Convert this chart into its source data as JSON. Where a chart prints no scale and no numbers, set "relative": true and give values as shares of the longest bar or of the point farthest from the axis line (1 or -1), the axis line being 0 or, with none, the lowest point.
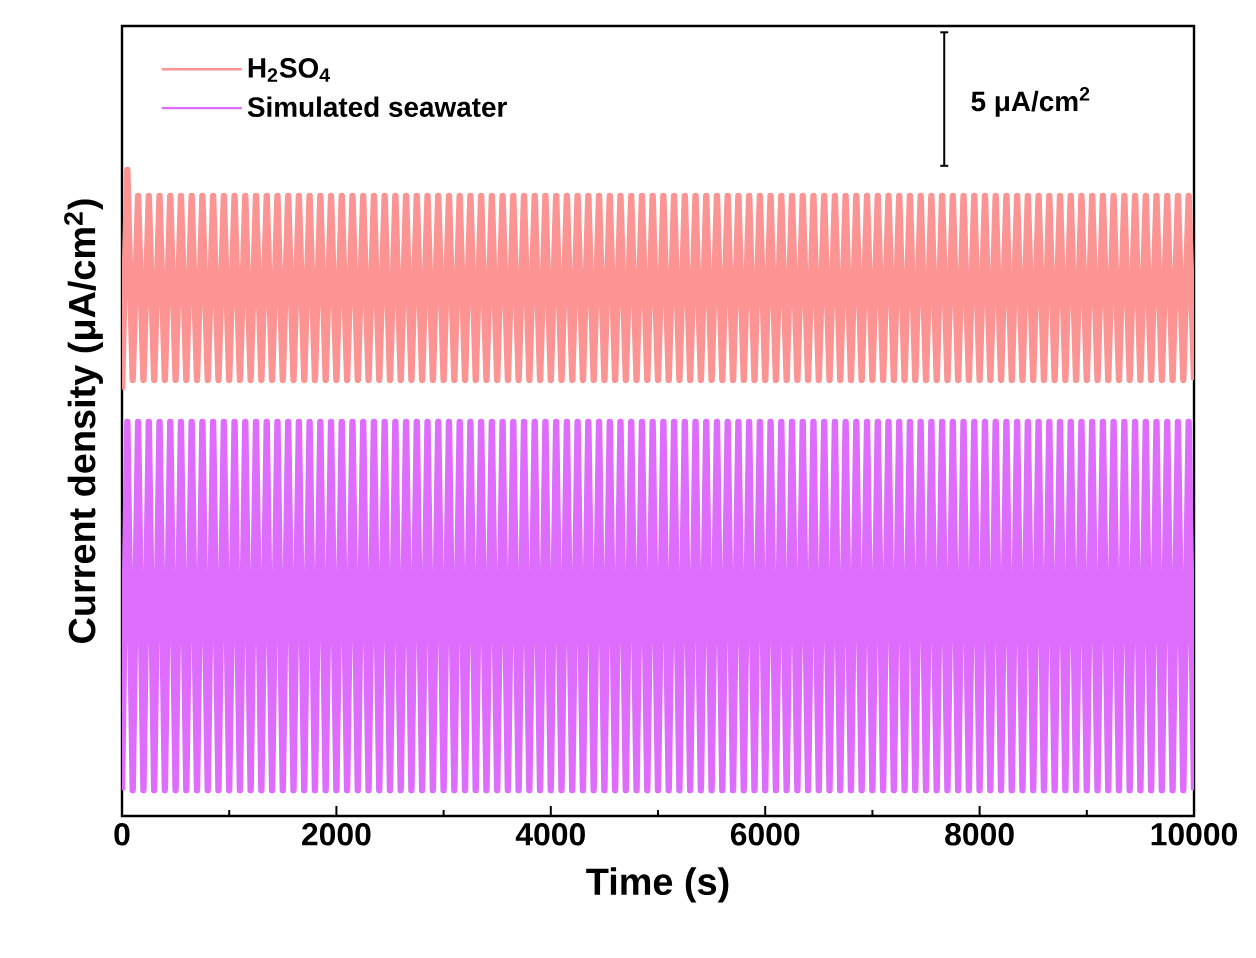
{
  "chart_data": {
    "type": "line",
    "relative": true,
    "xlabel": "Time (s)",
    "ylabel": "Current density (μA/cm$^{2}$)",
    "xlim": [
      0,
      10000
    ],
    "xticks": [
      0,
      2000,
      4000,
      6000,
      8000,
      10000
    ],
    "legend": "top left",
    "marker": "none",
    "annotations": [
      "5 μA/cm$^{2}$"
    ],
    "x": [
      0,
      50,
      100,
      150,
      200,
      250,
      300,
      350,
      400,
      450,
      500,
      550,
      600,
      650,
      700,
      750,
      800,
      850,
      900,
      950,
      1000,
      1050,
      1100,
      1150,
      1200,
      1250,
      1300,
      1350,
      1400,
      1450,
      1500,
      1550,
      1600,
      1650,
      1700,
      1750,
      1800,
      1850,
      1900,
      1950,
      2000,
      2050,
      2100,
      2150,
      2200,
      2250,
      2300,
      2350,
      2400,
      2450,
      2500,
      2550,
      2600,
      2650,
      2700,
      2750,
      2800,
      2850,
      2900,
      2950,
      3000,
      3050,
      3100,
      3150,
      3200,
      3250,
      3300,
      3350,
      3400,
      3450,
      3500,
      3550,
      3600,
      3650,
      3700,
      3750,
      3800,
      3850,
      3900,
      3950,
      4000,
      4050,
      4100,
      4150,
      4200,
      4250,
      4300,
      4350,
      4400,
      4450,
      4500,
      4550,
      4600,
      4650,
      4700,
      4750,
      4800,
      4850,
      4900,
      4950,
      5000,
      5050,
      5100,
      5150,
      5200,
      5250,
      5300,
      5350,
      5400,
      5450,
      5500,
      5550,
      5600,
      5650,
      5700,
      5750,
      5800,
      5850,
      5900,
      5950,
      6000,
      6050,
      6100,
      6150,
      6200,
      6250,
      6300,
      6350,
      6400,
      6450,
      6500,
      6550,
      6600,
      6650,
      6700,
      6750,
      6800,
      6850,
      6900,
      6950,
      7000,
      7050,
      7100,
      7150,
      7200,
      7250,
      7300,
      7350,
      7400,
      7450,
      7500,
      7550,
      7600,
      7650,
      7700,
      7750,
      7800,
      7850,
      7900,
      7950,
      8000,
      8050,
      8100,
      8150,
      8200,
      8250,
      8300,
      8350,
      8400,
      8450,
      8500,
      8550,
      8600,
      8650,
      8700,
      8750,
      8800,
      8850,
      8900,
      8950,
      9000,
      9050,
      9100,
      9150,
      9200,
      9250,
      9300,
      9350,
      9400,
      9450,
      9500,
      9550,
      9600,
      9650,
      9700,
      9750,
      9800,
      9850,
      9900,
      9950,
      10000
    ],
    "series": [
      {
        "name": "H$_{2}$SO$_{4}$",
        "color": "#fc9494",
        "values": [
          0.66,
          1.0,
          0.675,
          0.96,
          0.675,
          0.96,
          0.675,
          0.96,
          0.675,
          0.96,
          0.675,
          0.96,
          0.675,
          0.96,
          0.675,
          0.96,
          0.675,
          0.96,
          0.675,
          0.96,
          0.675,
          0.96,
          0.675,
          0.96,
          0.675,
          0.96,
          0.675,
          0.96,
          0.675,
          0.96,
          0.675,
          0.96,
          0.675,
          0.96,
          0.675,
          0.96,
          0.675,
          0.96,
          0.675,
          0.96,
          0.675,
          0.96,
          0.675,
          0.96,
          0.675,
          0.96,
          0.675,
          0.96,
          0.675,
          0.96,
          0.675,
          0.96,
          0.675,
          0.96,
          0.675,
          0.96,
          0.675,
          0.96,
          0.675,
          0.96,
          0.675,
          0.96,
          0.675,
          0.96,
          0.675,
          0.96,
          0.675,
          0.96,
          0.675,
          0.96,
          0.675,
          0.96,
          0.675,
          0.96,
          0.675,
          0.96,
          0.675,
          0.96,
          0.675,
          0.96,
          0.675,
          0.96,
          0.675,
          0.96,
          0.675,
          0.96,
          0.675,
          0.96,
          0.675,
          0.96,
          0.675,
          0.96,
          0.675,
          0.96,
          0.675,
          0.96,
          0.675,
          0.96,
          0.675,
          0.96,
          0.675,
          0.96,
          0.675,
          0.96,
          0.675,
          0.96,
          0.675,
          0.96,
          0.675,
          0.96,
          0.675,
          0.96,
          0.675,
          0.96,
          0.675,
          0.96,
          0.675,
          0.96,
          0.675,
          0.96,
          0.675,
          0.96,
          0.675,
          0.96,
          0.675,
          0.96,
          0.675,
          0.96,
          0.675,
          0.96,
          0.675,
          0.96,
          0.675,
          0.96,
          0.675,
          0.96,
          0.675,
          0.96,
          0.675,
          0.96,
          0.675,
          0.96,
          0.675,
          0.96,
          0.675,
          0.96,
          0.675,
          0.96,
          0.675,
          0.96,
          0.675,
          0.96,
          0.675,
          0.96,
          0.675,
          0.96,
          0.675,
          0.96,
          0.675,
          0.96,
          0.675,
          0.96,
          0.675,
          0.96,
          0.675,
          0.96,
          0.675,
          0.96,
          0.675,
          0.96,
          0.675,
          0.96,
          0.675,
          0.96,
          0.675,
          0.96,
          0.675,
          0.96,
          0.675,
          0.96,
          0.675,
          0.96,
          0.675,
          0.96,
          0.675,
          0.96,
          0.675,
          0.96,
          0.675,
          0.96,
          0.675,
          0.96,
          0.675,
          0.96,
          0.675,
          0.96,
          0.675,
          0.96,
          0.675,
          0.96,
          0.675
        ]
      },
      {
        "name": "Simulated seawater",
        "color": "#de6cfc",
        "values": [
          0.04,
          0.61,
          0.04,
          0.61,
          0.04,
          0.61,
          0.04,
          0.61,
          0.04,
          0.61,
          0.04,
          0.61,
          0.04,
          0.61,
          0.04,
          0.61,
          0.04,
          0.61,
          0.04,
          0.61,
          0.04,
          0.61,
          0.04,
          0.61,
          0.04,
          0.61,
          0.04,
          0.61,
          0.04,
          0.61,
          0.04,
          0.61,
          0.04,
          0.61,
          0.04,
          0.61,
          0.04,
          0.61,
          0.04,
          0.61,
          0.04,
          0.61,
          0.04,
          0.61,
          0.04,
          0.61,
          0.04,
          0.61,
          0.04,
          0.61,
          0.04,
          0.61,
          0.04,
          0.61,
          0.04,
          0.61,
          0.04,
          0.61,
          0.04,
          0.61,
          0.04,
          0.61,
          0.04,
          0.61,
          0.04,
          0.61,
          0.04,
          0.61,
          0.04,
          0.61,
          0.04,
          0.61,
          0.04,
          0.61,
          0.04,
          0.61,
          0.04,
          0.61,
          0.04,
          0.61,
          0.04,
          0.61,
          0.04,
          0.61,
          0.04,
          0.61,
          0.04,
          0.61,
          0.04,
          0.61,
          0.04,
          0.61,
          0.04,
          0.61,
          0.04,
          0.61,
          0.04,
          0.61,
          0.04,
          0.61,
          0.04,
          0.61,
          0.04,
          0.61,
          0.04,
          0.61,
          0.04,
          0.61,
          0.04,
          0.61,
          0.04,
          0.61,
          0.04,
          0.61,
          0.04,
          0.61,
          0.04,
          0.61,
          0.04,
          0.61,
          0.04,
          0.61,
          0.04,
          0.61,
          0.04,
          0.61,
          0.04,
          0.61,
          0.04,
          0.61,
          0.04,
          0.61,
          0.04,
          0.61,
          0.04,
          0.61,
          0.04,
          0.61,
          0.04,
          0.61,
          0.04,
          0.61,
          0.04,
          0.61,
          0.04,
          0.61,
          0.04,
          0.61,
          0.04,
          0.61,
          0.04,
          0.61,
          0.04,
          0.61,
          0.04,
          0.61,
          0.04,
          0.61,
          0.04,
          0.61,
          0.04,
          0.61,
          0.04,
          0.61,
          0.04,
          0.61,
          0.04,
          0.61,
          0.04,
          0.61,
          0.04,
          0.61,
          0.04,
          0.61,
          0.04,
          0.61,
          0.04,
          0.61,
          0.04,
          0.61,
          0.04,
          0.61,
          0.04,
          0.61,
          0.04,
          0.61,
          0.04,
          0.61,
          0.04,
          0.61,
          0.04,
          0.61,
          0.04,
          0.61,
          0.04,
          0.61,
          0.04,
          0.61,
          0.04,
          0.61,
          0.04
        ]
      }
    ]
  }
}
